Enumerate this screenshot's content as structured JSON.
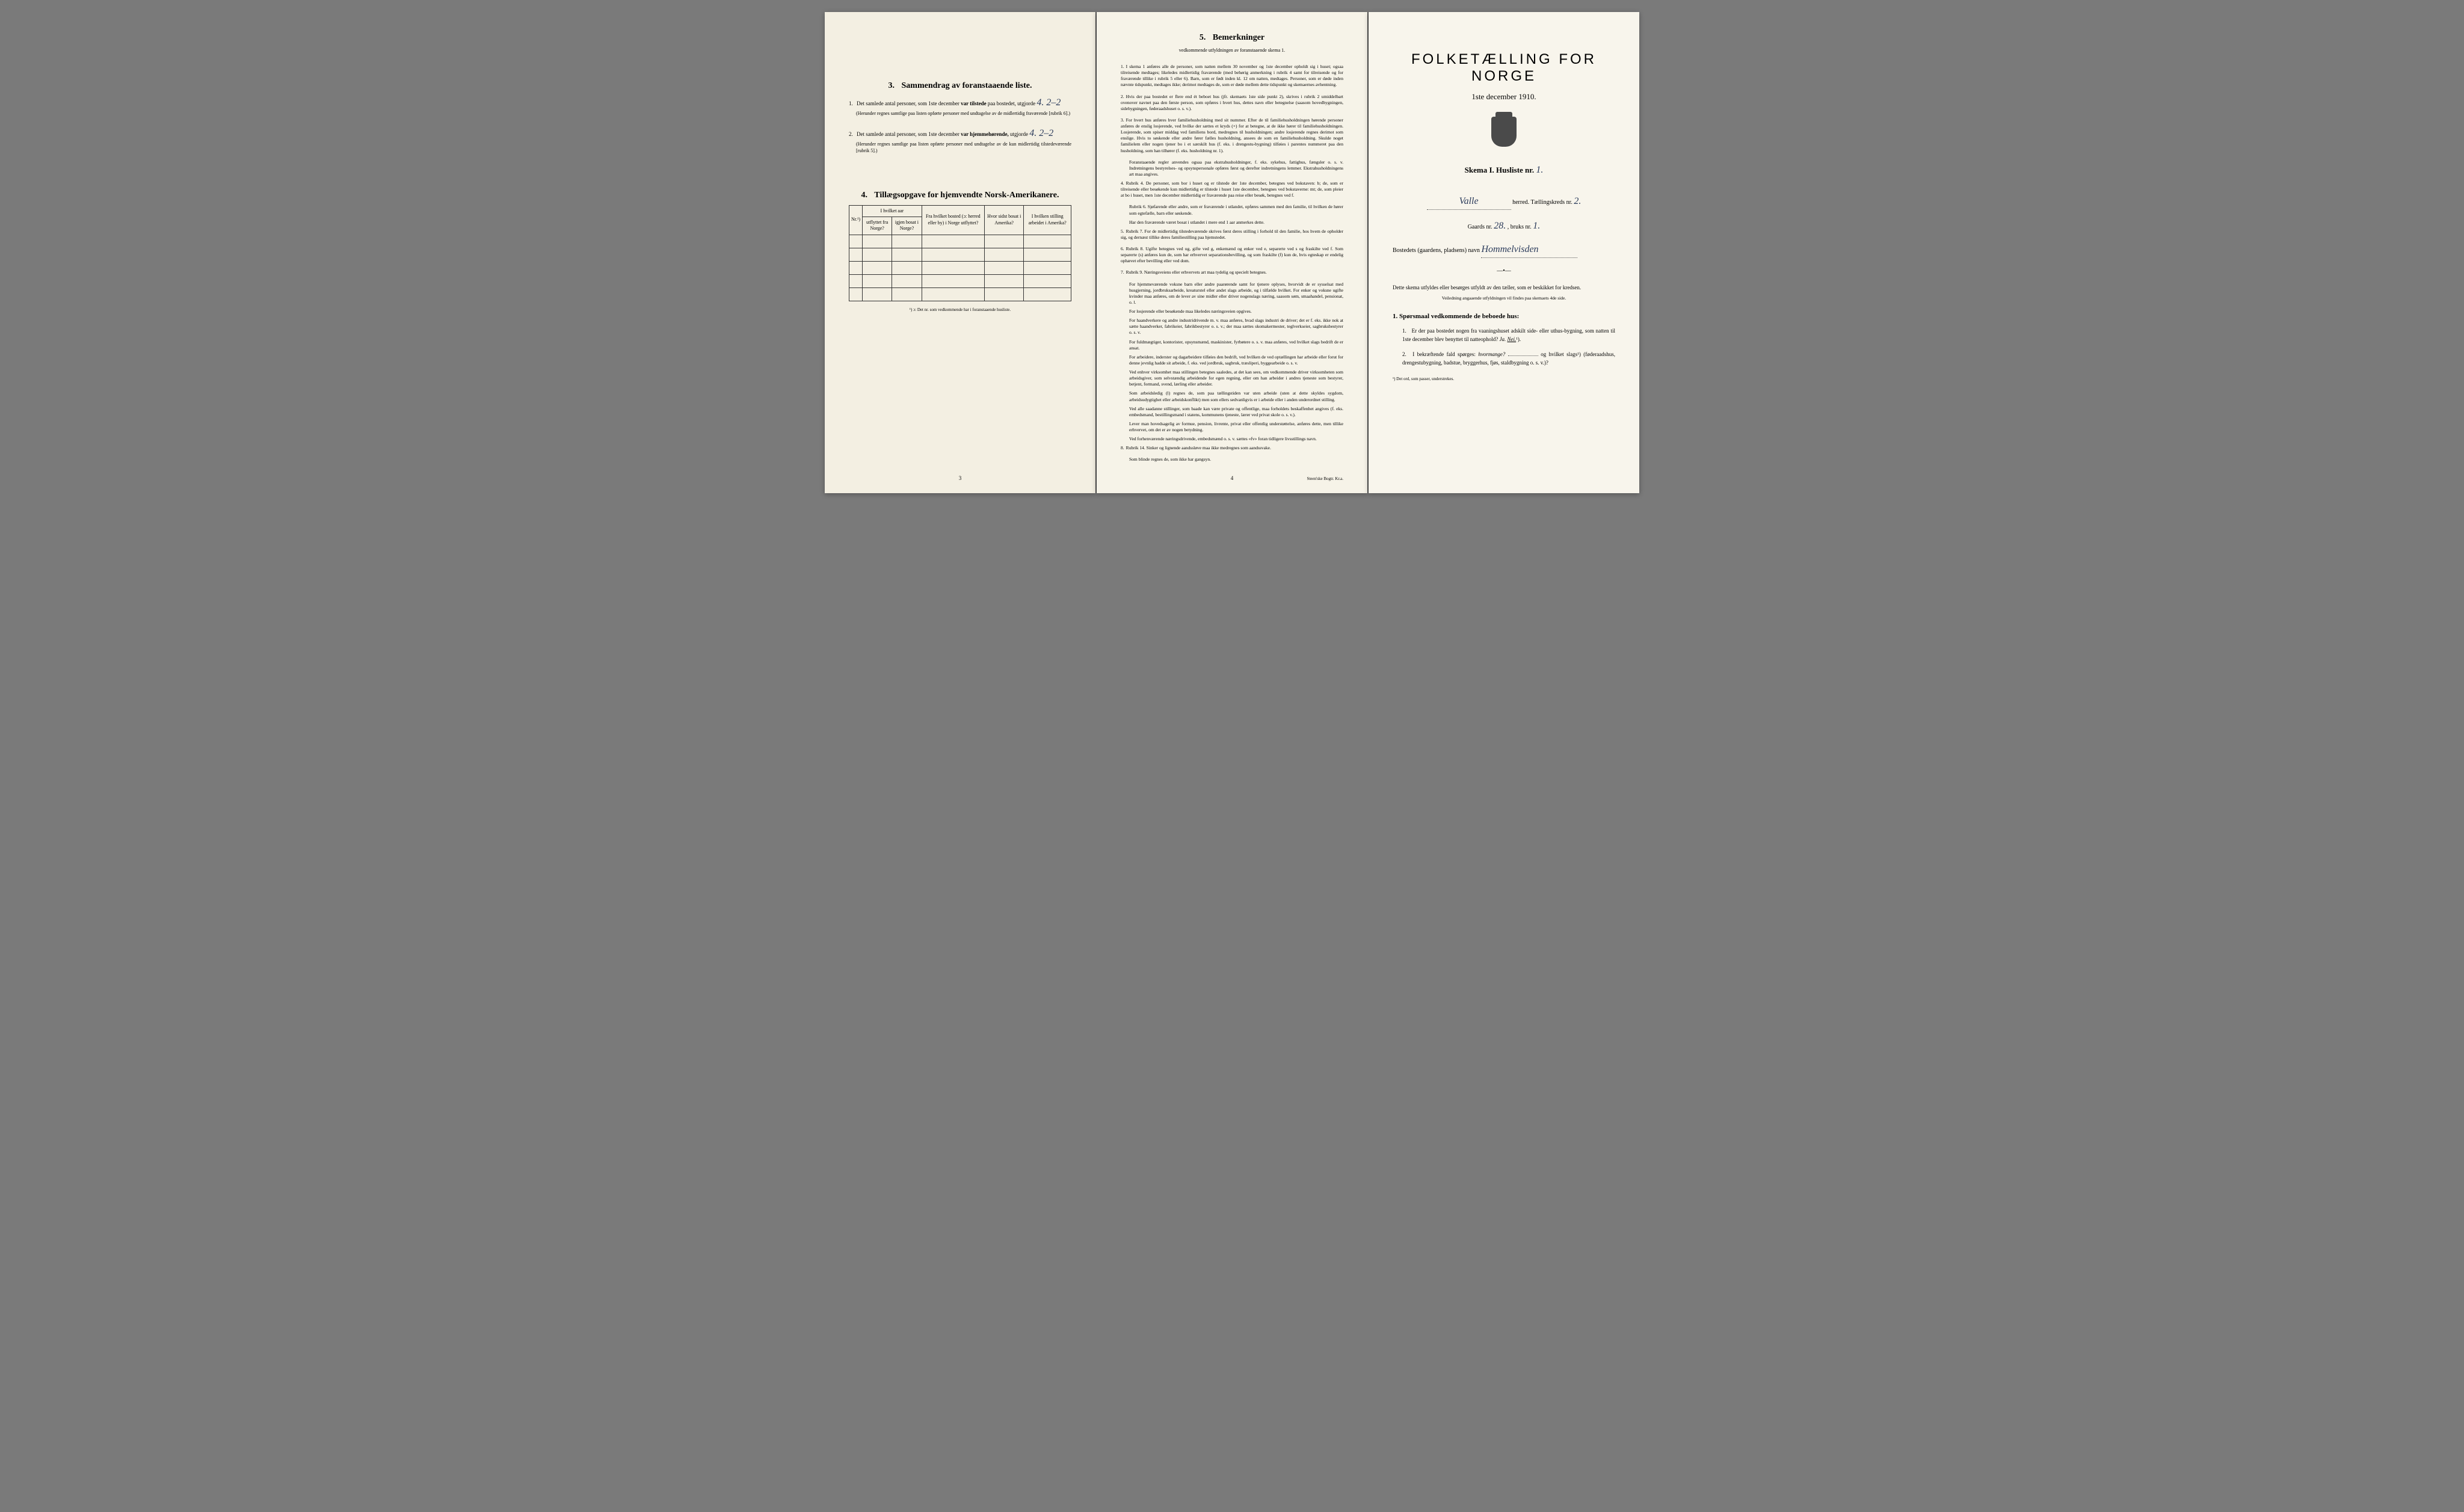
{
  "leftPage": {
    "section3": {
      "number": "3.",
      "title": "Sammendrag av foranstaaende liste.",
      "item1": {
        "num": "1.",
        "text_before": "Det samlede antal personer, som 1ste december",
        "text_bold": "var tilstede",
        "text_after": "paa bostedet, utgjorde",
        "handwritten": "4. 2–2",
        "note": "(Herunder regnes samtlige paa listen opførte personer med undtagelse av de midlertidig fraværende [rubrik 6].)"
      },
      "item2": {
        "num": "2.",
        "text_before": "Det samlede antal personer, som 1ste december",
        "text_bold": "var hjemmehørende,",
        "text_after": "utgjorde",
        "handwritten": "4. 2–2",
        "note": "(Herunder regnes samtlige paa listen opførte personer med undtagelse av de kun midlertidig tilstedeværende [rubrik 5].)"
      }
    },
    "section4": {
      "number": "4.",
      "title": "Tillægsopgave for hjemvendte Norsk-Amerikanere.",
      "headers": {
        "col1": "Nr.¹)",
        "col2_top": "I hvilket aar",
        "col2a": "utflyttet fra Norge?",
        "col2b": "igjen bosat i Norge?",
        "col3": "Fra hvilket bosted (ɔ: herred eller by) i Norge utflyttet?",
        "col4": "Hvor sidst bosat i Amerika?",
        "col5": "I hvilken stilling arbeidet i Amerika?"
      },
      "footnote": "¹) ɔ: Det nr. som vedkommende har i foranstaaende husliste."
    },
    "pageNum": "3"
  },
  "centerPage": {
    "section5": {
      "number": "5.",
      "title": "Bemerkninger",
      "subtitle": "vedkommende utfyldningen av foranstaaende skema 1."
    },
    "items": [
      {
        "num": "1.",
        "text": "I skema 1 anføres alle de personer, som natten mellem 30 november og 1ste december opholdt sig i huset; ogsaa tilreisende medtages; likeledes midlertidig fraværende (med behørig anmerkning i rubrik 4 samt for tilreisende og for fraværende tillike i rubrik 5 eller 6). Barn, som er født inden kl. 12 om natten, medtages. Personer, som er døde inden nævnte tidspunkt, medtages ikke; derimot medtages de, som er døde mellem dette tidspunkt og skemaernes avhentning."
      },
      {
        "num": "2.",
        "text": "Hvis der paa bostedet er flere end ét beboet hus (jfr. skemaets 1ste side punkt 2), skrives i rubrik 2 umiddelbart ovenover navnet paa den første person, som opføres i hvert hus, dettes navn eller betegnelse (saasom hovedbygningen, sidebygningen, føderaadshuset o. s. v.)."
      },
      {
        "num": "3.",
        "text": "For hvert hus anføres hver familiehusholdning med sit nummer. Efter de til familiehusholdningen hørende personer anføres de enslig losjerende, ved hvilke der sættes et kryds (×) for at betegne, at de ikke hører til familiehusholdningen. Losjerende, som spiser middag ved familiens bord, medregnes til husholdningen; andre losjerende regnes derimot som enslige. Hvis to søskende eller andre fører fælles husholdning, ansees de som en familiehusholdning. Skulde noget familielem eller nogen tjener bo i et særskilt hus (f. eks. i drengestu-bygning) tilføies i parentes nummeret paa den husholdning, som han tilhører (f. eks. husholdning nr. 1)."
      },
      {
        "num": "",
        "text": "Foranstaaende regler anvendes ogsaa paa ekstrahusholdninger, f. eks. sykehus, fattighus, fængsler o. s. v. Indretningens bestyrelses- og opsynspersonale opføres først og derefter indretningens lemmer. Ekstrahusholdningens art maa angives."
      },
      {
        "num": "4.",
        "text": "Rubrik 4. De personer, som bor i huset og er tilstede der 1ste december, betegnes ved bokstaven: b; de, som er tilreisende eller besøkende kun midlertidig er tilstede i huset 1ste december, betegnes ved bokstaverne: mt; de, som pleier at bo i huset, men 1ste december midlertidig er fraværende paa reise eller besøk, betegnes ved f."
      },
      {
        "num": "",
        "text": "Rubrik 6. Sjøfarende eller andre, som er fraværende i utlandet, opføres sammen med den familie, til hvilken de hører som egtefælle, barn eller søskende."
      },
      {
        "num": "",
        "text": "Har den fraværende været bosat i utlandet i mere end 1 aar anmerkes dette."
      },
      {
        "num": "5.",
        "text": "Rubrik 7. For de midlertidig tilstedeværende skrives først deres stilling i forhold til den familie, hos hvem de opholder sig, og dernæst tillike deres familiestilling paa hjemstedet."
      },
      {
        "num": "6.",
        "text": "Rubrik 8. Ugifte betegnes ved ug, gifte ved g, enkemænd og enker ved e, separerte ved s og fraskilte ved f. Som separerte (s) anføres kun de, som har erhvervet separationsbevilling, og som fraskilte (f) kun de, hvis egteskap er endelig ophævet efter bevilling eller ved dom."
      },
      {
        "num": "7.",
        "text": "Rubrik 9. Næringsveiens eller erhvervets art maa tydelig og specielt betegnes."
      },
      {
        "num": "",
        "text": "For hjemmeværende voksne barn eller andre paarørende samt for tjenere oplyses, hvorvidt de er sysselsat med husgjerning, jordbruksarbeide, kreaturstel eller andet slags arbeide, og i tilfælde hvilket. For enker og voksne ugifte kvinder maa anføres, om de lever av sine midler eller driver nogenslags næring, saasom søm, smaahandel, pensionat, o. l."
      },
      {
        "num": "",
        "text": "For losjerende eller besøkende maa likeledes næringsveien opgives."
      },
      {
        "num": "",
        "text": "For haandverkere og andre industridrivende m. v. maa anføres, hvad slags industri de driver; det er f. eks. ikke nok at sætte haandverker, fabrikeier, fabrikbestyrer o. s. v.; der maa sættes skomakermester, teglverkseier, sagbruksbestyrer o. s. v."
      },
      {
        "num": "",
        "text": "For fuldmægtiger, kontorister, opsynsmænd, maskinister, fyrbøtere o. s. v. maa anføres, ved hvilket slags bedrift de er ansat."
      },
      {
        "num": "",
        "text": "For arbeidere, inderster og dagarbeidere tilføies den bedrift, ved hvilken de ved optællingen har arbeide eller forut for denne jevnlig hadde sit arbeide, f. eks. ved jordbruk, sagbruk, træsliperi, byggearbeide o. s. v."
      },
      {
        "num": "",
        "text": "Ved enhver virksomhet maa stillingen betegnes saaledes, at det kan sees, om vedkommende driver virksomheten som arbeidsgiver, som selvstændig arbeidende for egen regning, eller om han arbeider i andres tjeneste som bestyrer, betjent, formand, svend, lærling eller arbeider."
      },
      {
        "num": "",
        "text": "Som arbeidsledig (l) regnes de, som paa tællingstiden var uten arbeide (uten at dette skyldes sygdom, arbeidsudygtighet eller arbeidskonflikt) men som ellers sedvanligvis er i arbeide eller i anden underordnet stilling."
      },
      {
        "num": "",
        "text": "Ved alle saadanne stillinger, som baade kan være private og offentlige, maa forholdets beskaffenhet angives (f. eks. embedsmand, bestillingsmand i statens, kommunens tjeneste, lærer ved privat skole o. s. v.)."
      },
      {
        "num": "",
        "text": "Lever man hovedsagelig av formue, pension, livrente, privat eller offentlig understøttelse, anføres dette, men tillike erhvervet, om det er av nogen betydning."
      },
      {
        "num": "",
        "text": "Ved forhenværende næringsdrivende, embedsmænd o. s. v. sættes «fv» foran tidligere livsstillings navn."
      },
      {
        "num": "8.",
        "text": "Rubrik 14. Sinker og lignende aandssløve maa ikke medregnes som aandssvake."
      },
      {
        "num": "",
        "text": "Som blinde regnes de, som ikke har gangsyn."
      }
    ],
    "pageNum": "4",
    "printer": "Steen'ske Bogtr. Kr.a."
  },
  "rightPage": {
    "mainTitle": "FOLKETÆLLING FOR NORGE",
    "dateLine": "1ste december 1910.",
    "skemaLine": {
      "label": "Skema I.   Husliste nr.",
      "value": "1."
    },
    "herredLine": {
      "value": "Valle",
      "label1": "herred.  Tællingskreds nr.",
      "value2": "2."
    },
    "gaardsLine": {
      "label1": "Gaards nr.",
      "value1": "28.",
      "label2": ", bruks nr.",
      "value2": "1."
    },
    "bostedLine": {
      "label": "Bostedets (gaardens, pladsens) navn",
      "value": "Hommelvisden"
    },
    "instructions": "Dette skema utfyldes eller besørges utfyldt av den tæller, som er beskikket for kredsen.",
    "smallInstr": "Veiledning angaaende utfyldningen vil findes paa skemaets 4de side.",
    "q1header": {
      "num": "1.",
      "text": "Spørsmaal vedkommende de beboede hus:"
    },
    "questions": [
      {
        "num": "1.",
        "text": "Er der paa bostedet nogen fra vaaningshuset adskilt side- eller uthus-bygning, som natten til 1ste december blev benyttet til natteophold?",
        "answer_ja": "Ja.",
        "answer_nei": "Nei.",
        "sup": "¹)."
      },
      {
        "num": "2.",
        "text_before": "I bekræftende fald spørges:",
        "text_italic": "hvormange?",
        "text_after": "og hvilket slags¹) (føderaadshus, drengestubygning, badstue, bryggerhus, fjøs, staldbygning o. s. v.)?"
      }
    ],
    "footnote": "¹) Det ord, som passer, understrekes."
  }
}
